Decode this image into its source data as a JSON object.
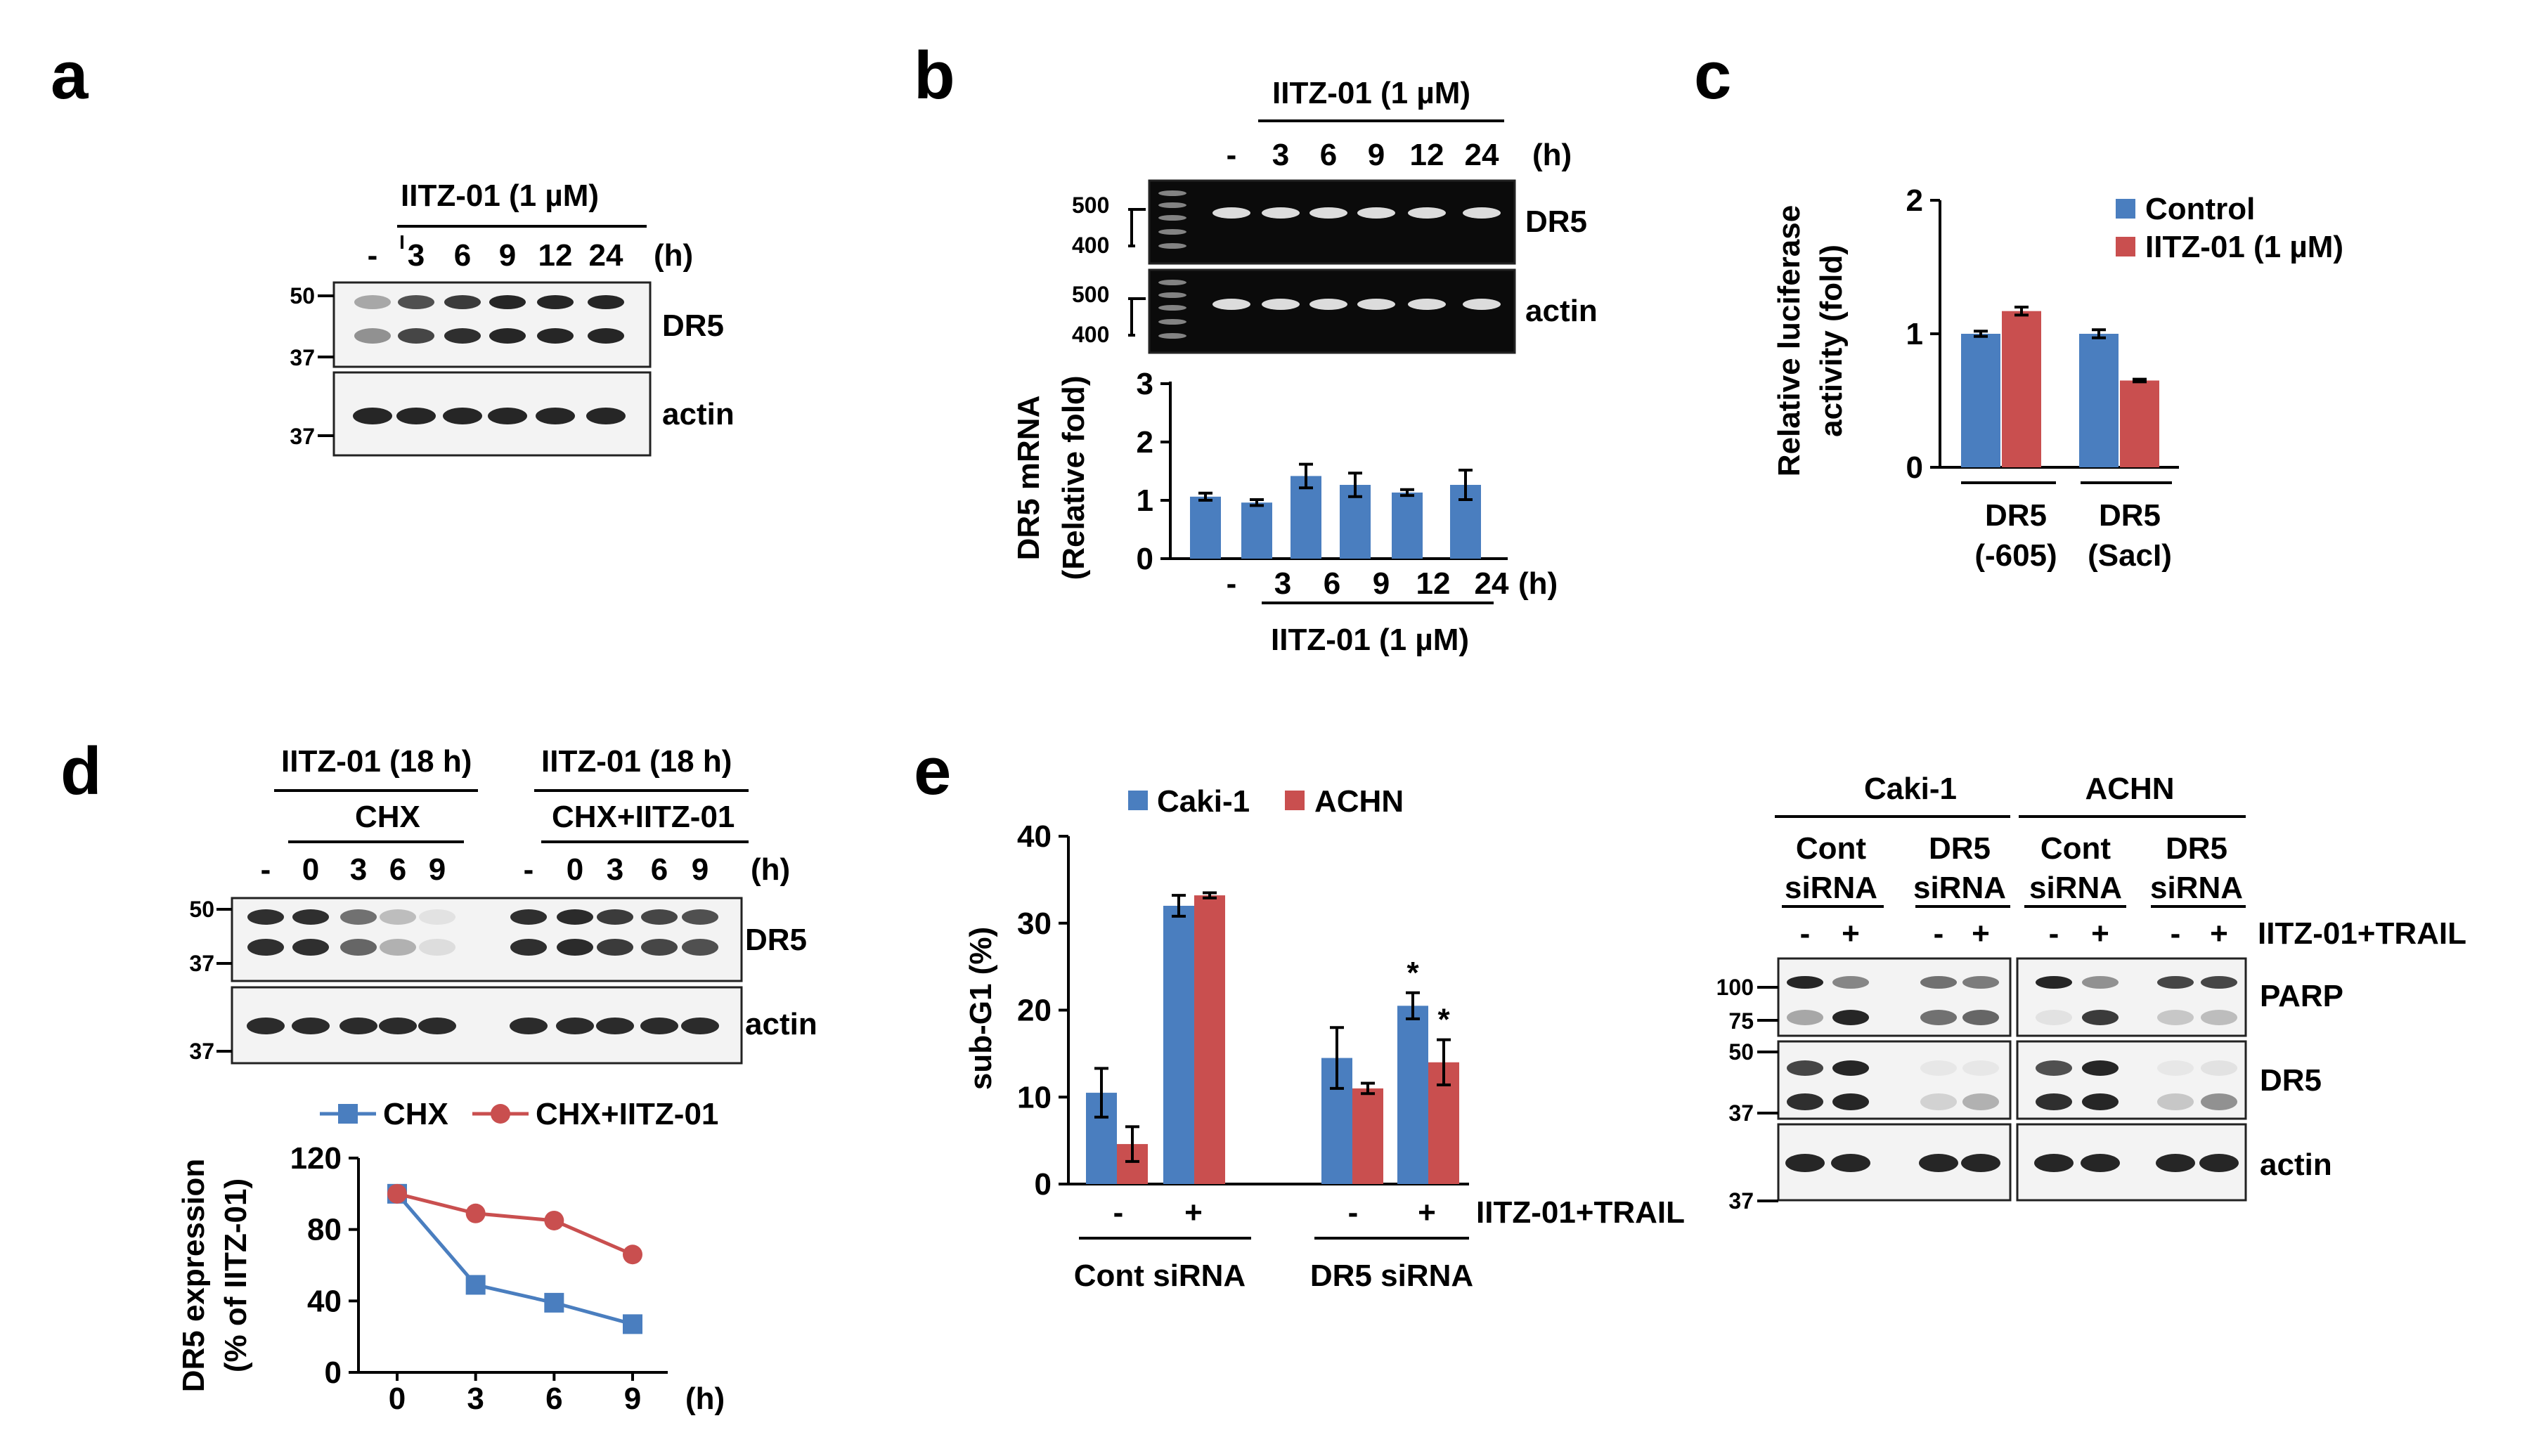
{
  "panels": [
    "a",
    "b",
    "c",
    "d",
    "e"
  ],
  "colors": {
    "blue": "#4a7ebf",
    "red": "#c94f4f",
    "band": "#1a1a1a",
    "gelband": "#e8e8e8"
  },
  "a": {
    "treatment": "IITZ-01 (1 µM)",
    "lanes": [
      "-",
      "3",
      "6",
      "9",
      "12",
      "24"
    ],
    "unit": "(h)",
    "blots": [
      "DR5",
      "actin"
    ],
    "mw": [
      "50",
      "37",
      "37"
    ]
  },
  "b": {
    "treatment": "IITZ-01 (1 µM)",
    "lanes": [
      "-",
      "3",
      "6",
      "9",
      "12",
      "24"
    ],
    "unit": "(h)",
    "gels": [
      "DR5",
      "actin"
    ],
    "ladder": [
      "500",
      "400"
    ],
    "xlabel": "IITZ-01 (1 µM)",
    "ylabel_line1": "DR5 mRNA",
    "ylabel_line2": "(Relative fold)",
    "yticks": [
      "0",
      "1",
      "2",
      "3"
    ]
  },
  "c": {
    "ylabel_line1": "Relative luciferase",
    "ylabel_line2": "activity (fold)",
    "yticks": [
      "0",
      "1",
      "2"
    ],
    "legend": [
      "Control",
      "IITZ-01 (1 µM)"
    ],
    "groups": [
      {
        "line1": "DR5",
        "line2": "(-605)"
      },
      {
        "line1": "DR5",
        "line2": "(SacI)"
      }
    ]
  },
  "d": {
    "header_left": "IITZ-01 (18 h)",
    "header_right": "IITZ-01 (18 h)",
    "sub_left": "CHX",
    "sub_right": "CHX+IITZ-01",
    "lanes": [
      "-",
      "0",
      "3",
      "6",
      "9",
      "-",
      "0",
      "3",
      "6",
      "9"
    ],
    "unit": "(h)",
    "blots": [
      "DR5",
      "actin"
    ],
    "mw": [
      "50",
      "37",
      "37"
    ],
    "legend": [
      "CHX",
      "CHX+IITZ-01"
    ],
    "ylabel_line1": "DR5 expression",
    "ylabel_line2": "(% of IITZ-01)",
    "yticks": [
      "0",
      "40",
      "80",
      "120"
    ],
    "xunit": "(h)"
  },
  "e": {
    "legend": [
      "Caki-1",
      "ACHN"
    ],
    "ylabel": "sub-G1 (%)",
    "yticks": [
      "0",
      "10",
      "20",
      "30",
      "40"
    ],
    "signs": [
      "-",
      "+",
      "-",
      "+"
    ],
    "treatment": "IITZ-01+TRAIL",
    "groups": [
      "Cont siRNA",
      "DR5 siRNA"
    ],
    "star": "*",
    "blot": {
      "cells": [
        "Caki-1",
        "ACHN"
      ],
      "sirna": [
        {
          "line1": "Cont",
          "line2": "siRNA"
        },
        {
          "line1": "DR5",
          "line2": "siRNA"
        },
        {
          "line1": "Cont",
          "line2": "siRNA"
        },
        {
          "line1": "DR5",
          "line2": "siRNA"
        }
      ],
      "signs": [
        "-",
        "+",
        "-",
        "+",
        "-",
        "+",
        "-",
        "+"
      ],
      "treatment": "IITZ-01+TRAIL",
      "rows": [
        "PARP",
        "DR5",
        "actin"
      ],
      "mw": [
        "100",
        "75",
        "50",
        "37",
        "37"
      ]
    }
  },
  "chart_data": [
    {
      "type": "bar",
      "panel": "b",
      "title": "",
      "categories": [
        "-",
        "3",
        "6",
        "9",
        "12",
        "24"
      ],
      "values": [
        1.05,
        0.95,
        1.4,
        1.25,
        1.12,
        1.25
      ],
      "errors": [
        0.06,
        0.05,
        0.2,
        0.2,
        0.05,
        0.25
      ],
      "xlabel": "IITZ-01 (1 µM)",
      "ylabel": "DR5 mRNA (Relative fold)",
      "ylim": [
        0,
        3
      ]
    },
    {
      "type": "bar",
      "panel": "c",
      "categories": [
        "DR5 (-605)",
        "DR5 (SacI)"
      ],
      "series": [
        {
          "name": "Control",
          "values": [
            1.0,
            1.0
          ],
          "errors": [
            0.02,
            0.03
          ]
        },
        {
          "name": "IITZ-01 (1 µM)",
          "values": [
            1.17,
            0.65
          ],
          "errors": [
            0.03,
            0.01
          ]
        }
      ],
      "ylabel": "Relative luciferase activity (fold)",
      "ylim": [
        0,
        2
      ]
    },
    {
      "type": "line",
      "panel": "d",
      "x": [
        0,
        3,
        6,
        9
      ],
      "series": [
        {
          "name": "CHX",
          "values": [
            100,
            49,
            39,
            27
          ]
        },
        {
          "name": "CHX+IITZ-01",
          "values": [
            100,
            89,
            85,
            66
          ]
        }
      ],
      "xlabel": "(h)",
      "ylabel": "DR5 expression (% of IITZ-01)",
      "ylim": [
        0,
        120
      ]
    },
    {
      "type": "bar",
      "panel": "e",
      "categories": [
        "Cont siRNA -",
        "Cont siRNA +",
        "DR5 siRNA -",
        "DR5 siRNA +"
      ],
      "series": [
        {
          "name": "Caki-1",
          "values": [
            10.5,
            32,
            14.5,
            20.5
          ],
          "errors": [
            2.8,
            1.2,
            3.5,
            1.5
          ]
        },
        {
          "name": "ACHN",
          "values": [
            4.6,
            33.2,
            11,
            14
          ],
          "errors": [
            2,
            0.3,
            0.6,
            2.6
          ]
        }
      ],
      "ylabel": "sub-G1 (%)",
      "ylim": [
        0,
        40
      ]
    }
  ]
}
